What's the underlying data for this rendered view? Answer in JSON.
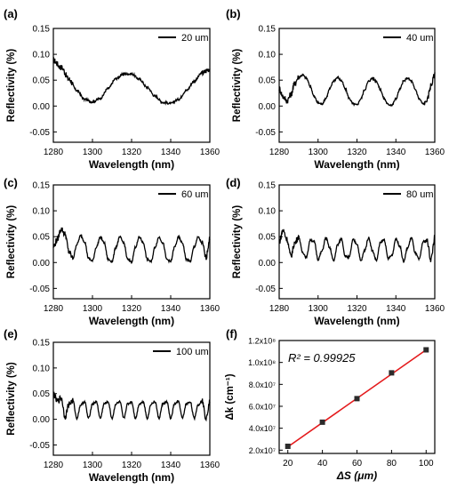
{
  "chart_data": [
    {
      "panel": "(a)",
      "type": "line",
      "xlabel": "Wavelength (nm)",
      "ylabel": "Reflectivity (%)",
      "xlim": [
        1280,
        1360
      ],
      "ylim": [
        -0.07,
        0.15
      ],
      "xticks": [
        "1280",
        "1300",
        "1320",
        "1340",
        "1360"
      ],
      "yticks": [
        "-0.05",
        "0.00",
        "0.05",
        "0.10",
        "0.15"
      ],
      "legend": "20 um",
      "legend_position": "top-right",
      "series": [
        {
          "x": [
            1280,
            1284,
            1288,
            1292,
            1296,
            1300,
            1304,
            1308,
            1312,
            1316,
            1320,
            1324,
            1328,
            1332,
            1336,
            1340,
            1344,
            1348,
            1352,
            1356,
            1360
          ],
          "values": [
            0.088,
            0.075,
            0.052,
            0.03,
            0.013,
            0.008,
            0.015,
            0.034,
            0.053,
            0.062,
            0.062,
            0.052,
            0.036,
            0.019,
            0.007,
            0.005,
            0.013,
            0.03,
            0.048,
            0.064,
            0.072
          ]
        }
      ]
    },
    {
      "panel": "(b)",
      "type": "line",
      "xlabel": "Wavelength (nm)",
      "ylabel": "Reflectivity (%)",
      "xlim": [
        1280,
        1360
      ],
      "ylim": [
        -0.07,
        0.15
      ],
      "xticks": [
        "1280",
        "1300",
        "1320",
        "1340",
        "1360"
      ],
      "yticks": [
        "-0.05",
        "0.00",
        "0.05",
        "0.10",
        "0.15"
      ],
      "legend": "40 um",
      "legend_position": "top-right",
      "series": [
        {
          "x": [
            1280,
            1282,
            1284,
            1286,
            1288,
            1290,
            1292,
            1294,
            1296,
            1298,
            1300,
            1302,
            1304,
            1306,
            1308,
            1310,
            1312,
            1314,
            1316,
            1318,
            1320,
            1322,
            1324,
            1326,
            1328,
            1330,
            1332,
            1334,
            1336,
            1338,
            1340,
            1342,
            1344,
            1346,
            1348,
            1350,
            1352,
            1354,
            1356,
            1358,
            1360
          ],
          "values": [
            0.034,
            0.018,
            0.01,
            0.022,
            0.044,
            0.056,
            0.06,
            0.054,
            0.038,
            0.018,
            0.006,
            0.004,
            0.015,
            0.033,
            0.049,
            0.055,
            0.049,
            0.033,
            0.015,
            0.004,
            0.002,
            0.014,
            0.032,
            0.048,
            0.054,
            0.048,
            0.032,
            0.014,
            0.003,
            0.002,
            0.014,
            0.032,
            0.048,
            0.054,
            0.048,
            0.032,
            0.014,
            0.004,
            0.01,
            0.04,
            0.06
          ]
        }
      ]
    },
    {
      "panel": "(c)",
      "type": "line",
      "xlabel": "Wavelength (nm)",
      "ylabel": "Reflectivity (%)",
      "xlim": [
        1280,
        1360
      ],
      "ylim": [
        -0.07,
        0.15
      ],
      "xticks": [
        "1280",
        "1300",
        "1320",
        "1340",
        "1360"
      ],
      "yticks": [
        "-0.05",
        "0.00",
        "0.05",
        "0.10",
        "0.15"
      ],
      "legend": "60 um",
      "legend_position": "top-right",
      "series": [
        {
          "x": [
            1280,
            1282,
            1284,
            1286,
            1288,
            1290,
            1292,
            1294,
            1296,
            1298,
            1300,
            1302,
            1304,
            1306,
            1308,
            1310,
            1312,
            1314,
            1316,
            1318,
            1320,
            1322,
            1324,
            1326,
            1328,
            1330,
            1332,
            1334,
            1336,
            1338,
            1340,
            1342,
            1344,
            1346,
            1348,
            1350,
            1352,
            1354,
            1356,
            1358,
            1360
          ],
          "values": [
            0.03,
            0.045,
            0.065,
            0.055,
            0.02,
            0.008,
            0.035,
            0.052,
            0.04,
            0.008,
            0.003,
            0.03,
            0.049,
            0.038,
            0.006,
            0.002,
            0.03,
            0.049,
            0.038,
            0.006,
            0.002,
            0.03,
            0.049,
            0.038,
            0.006,
            0.002,
            0.03,
            0.049,
            0.038,
            0.006,
            0.002,
            0.03,
            0.049,
            0.038,
            0.006,
            0.002,
            0.03,
            0.049,
            0.038,
            0.01,
            0.045
          ]
        }
      ]
    },
    {
      "panel": "(d)",
      "type": "line",
      "xlabel": "Wavelength (nm)",
      "ylabel": "Reflectivity (%)",
      "xlim": [
        1280,
        1360
      ],
      "ylim": [
        -0.07,
        0.15
      ],
      "xticks": [
        "1280",
        "1300",
        "1320",
        "1340",
        "1360"
      ],
      "yticks": [
        "-0.05",
        "0.00",
        "0.05",
        "0.10",
        "0.15"
      ],
      "legend": "80 um",
      "legend_position": "top-right",
      "series": [
        {
          "x": [
            1280,
            1282,
            1284,
            1286,
            1288,
            1290,
            1292,
            1294,
            1296,
            1298,
            1300,
            1302,
            1304,
            1306,
            1308,
            1310,
            1312,
            1314,
            1316,
            1318,
            1320,
            1322,
            1324,
            1326,
            1328,
            1330,
            1332,
            1334,
            1336,
            1338,
            1340,
            1342,
            1344,
            1346,
            1348,
            1350,
            1352,
            1354,
            1356,
            1358,
            1360
          ],
          "values": [
            0.04,
            0.062,
            0.045,
            0.012,
            0.038,
            0.05,
            0.02,
            0.01,
            0.044,
            0.04,
            0.006,
            0.022,
            0.048,
            0.028,
            0.003,
            0.034,
            0.046,
            0.012,
            0.01,
            0.044,
            0.036,
            0.003,
            0.024,
            0.048,
            0.022,
            0.004,
            0.038,
            0.044,
            0.008,
            0.014,
            0.046,
            0.032,
            0.002,
            0.028,
            0.048,
            0.018,
            0.006,
            0.04,
            0.042,
            0.006,
            0.048
          ]
        }
      ]
    },
    {
      "panel": "(e)",
      "type": "line",
      "xlabel": "Wavelength (nm)",
      "ylabel": "Reflectivity (%)",
      "xlim": [
        1280,
        1360
      ],
      "ylim": [
        -0.07,
        0.15
      ],
      "xticks": [
        "1280",
        "1300",
        "1320",
        "1340",
        "1360"
      ],
      "yticks": [
        "-0.05",
        "0.00",
        "0.05",
        "0.10",
        "0.15"
      ],
      "legend": "100 um",
      "legend_position": "top-right",
      "series": [
        {
          "x": [
            1280,
            1282,
            1284,
            1286,
            1288,
            1290,
            1292,
            1294,
            1296,
            1298,
            1300,
            1302,
            1304,
            1306,
            1308,
            1310,
            1312,
            1314,
            1316,
            1318,
            1320,
            1322,
            1324,
            1326,
            1328,
            1330,
            1332,
            1334,
            1336,
            1338,
            1340,
            1342,
            1344,
            1346,
            1348,
            1350,
            1352,
            1354,
            1356,
            1358,
            1360
          ],
          "values": [
            0.05,
            0.035,
            0.042,
            0.005,
            0.03,
            0.036,
            0.002,
            0.028,
            0.034,
            0.002,
            0.03,
            0.034,
            0.002,
            0.03,
            0.034,
            0.002,
            0.03,
            0.034,
            0.002,
            0.03,
            0.034,
            0.002,
            0.03,
            0.034,
            0.002,
            0.03,
            0.034,
            0.002,
            0.03,
            0.034,
            0.002,
            0.03,
            0.034,
            0.002,
            0.03,
            0.034,
            0.002,
            0.028,
            0.036,
            0.004,
            0.034
          ]
        }
      ]
    },
    {
      "panel": "(f)",
      "type": "scatter",
      "xlabel": "ΔS (μm)",
      "ylabel": "Δk (cm⁻¹)",
      "xlim": [
        15,
        105
      ],
      "ylim": [
        17000000,
        120000000
      ],
      "xticks": [
        "20",
        "40",
        "60",
        "80",
        "100"
      ],
      "yticks": [
        "2.0x10⁷",
        "4.0x10⁷",
        "6.0x10⁷",
        "8.0x10⁷",
        "1.0x10⁸",
        "1.2x10⁸"
      ],
      "annotation": "R² = 0.99925",
      "series": [
        {
          "x": [
            20,
            40,
            60,
            80,
            100
          ],
          "values": [
            23500000,
            45500000,
            67000000,
            90500000,
            111500000
          ]
        }
      ],
      "fit_line": {
        "x": [
          20,
          100
        ],
        "values": [
          23000000,
          111500000
        ],
        "color": "#e41a1c"
      },
      "marker_color": "#2b2b2b"
    }
  ]
}
